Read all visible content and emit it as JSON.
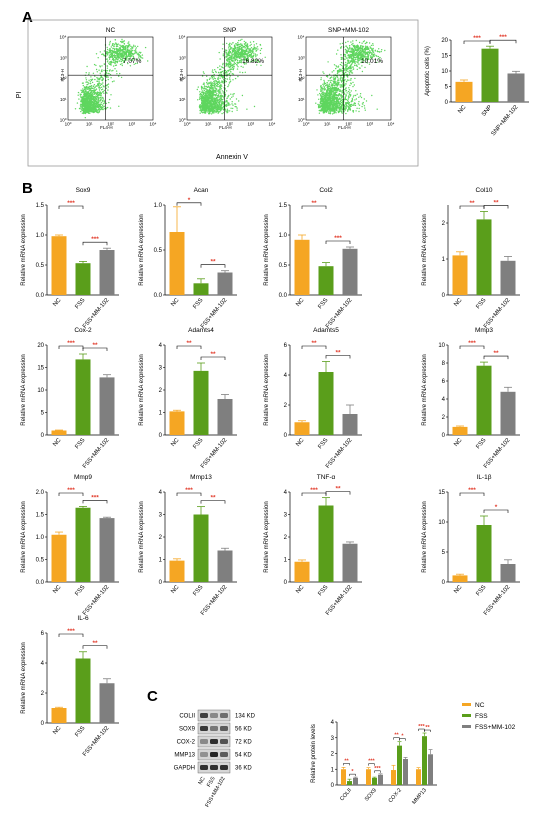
{
  "panel_labels": {
    "a": "A",
    "b": "B",
    "c": "C"
  },
  "colors": {
    "orange": "#F5A623",
    "green": "#5A9E1B",
    "gray": "#7F7F7F",
    "sig": "#E23A2A",
    "dots": "#5FD65F"
  },
  "flow": {
    "xlabel": "Annexin V",
    "ylabel": "PI",
    "quadrant_x_label": "FL4-H",
    "quadrant_y_label": "FL3-H",
    "x_ticks": [
      "10⁰",
      "10¹",
      "10²",
      "10³",
      "10⁴"
    ],
    "y_ticks": [
      "10⁰",
      "10¹",
      "10²",
      "10³",
      "10⁴"
    ],
    "plots": [
      {
        "title": "NC",
        "percent": "7.07%"
      },
      {
        "title": "SNP",
        "percent": "16.82%"
      },
      {
        "title": "SNP+MM-102",
        "percent": "10.01%"
      }
    ]
  },
  "western": {
    "bands": [
      {
        "name": "COLII",
        "size": "134 KD"
      },
      {
        "name": "SOX9",
        "size": "56 KD"
      },
      {
        "name": "COX-2",
        "size": "72 KD"
      },
      {
        "name": "MMP13",
        "size": "54 KD"
      },
      {
        "name": "GAPDH",
        "size": "36 KD"
      }
    ],
    "lanes": [
      "NC",
      "FSS",
      "FSS+MM-102"
    ]
  },
  "legend": [
    {
      "name": "NC",
      "color": "#F5A623"
    },
    {
      "name": "FSS",
      "color": "#5A9E1B"
    },
    {
      "name": "FSS+MM-102",
      "color": "#7F7F7F"
    }
  ],
  "chart_data": [
    {
      "id": "apoptosis",
      "type": "bar",
      "title": "",
      "ylabel": "Apoptotic cells (%)",
      "categories": [
        "NC",
        "SNP",
        "SNP+MM-102"
      ],
      "values": [
        6.5,
        17.2,
        9.2
      ],
      "errors": [
        0.6,
        0.8,
        0.7
      ],
      "ylim": [
        0,
        20
      ],
      "yticks": [
        "0",
        "5",
        "10",
        "15",
        "20"
      ],
      "sig": [
        {
          "from": 0,
          "to": 1,
          "label": "***"
        },
        {
          "from": 1,
          "to": 2,
          "label": "***"
        }
      ]
    },
    {
      "id": "sox9",
      "type": "bar",
      "title": "Sox9",
      "ylabel": "Relative mRNA expression",
      "categories": [
        "NC",
        "FSS",
        "FSS+MM-102"
      ],
      "values": [
        0.98,
        0.53,
        0.75
      ],
      "errors": [
        0.02,
        0.03,
        0.03
      ],
      "ylim": [
        0,
        1.5
      ],
      "yticks": [
        "0.0",
        "0.5",
        "1.0",
        "1.5"
      ],
      "sig": [
        {
          "from": 0,
          "to": 1,
          "label": "***"
        },
        {
          "from": 1,
          "to": 2,
          "label": "***"
        }
      ]
    },
    {
      "id": "acan",
      "type": "bar",
      "title": "Acan",
      "ylabel": "Relative mRNA expression",
      "categories": [
        "NC",
        "FSS",
        "FSS+MM-102"
      ],
      "values": [
        0.7,
        0.13,
        0.25
      ],
      "errors": [
        0.28,
        0.05,
        0.02
      ],
      "ylim": [
        0,
        1.0
      ],
      "yticks": [
        "0.0",
        "0.5",
        "1.0"
      ],
      "sig": [
        {
          "from": 0,
          "to": 1,
          "label": "*"
        },
        {
          "from": 1,
          "to": 2,
          "label": "**"
        }
      ]
    },
    {
      "id": "col2",
      "type": "bar",
      "title": "Col2",
      "ylabel": "Relative mRNA expression",
      "categories": [
        "NC",
        "FSS",
        "FSS+MM-102"
      ],
      "values": [
        0.92,
        0.48,
        0.77
      ],
      "errors": [
        0.08,
        0.06,
        0.03
      ],
      "ylim": [
        0,
        1.5
      ],
      "yticks": [
        "0.0",
        "0.5",
        "1.0",
        "1.5"
      ],
      "sig": [
        {
          "from": 0,
          "to": 1,
          "label": "**"
        },
        {
          "from": 1,
          "to": 2,
          "label": "***"
        }
      ]
    },
    {
      "id": "col10",
      "type": "bar",
      "title": "Col10",
      "ylabel": "Relative mRNA expression",
      "categories": [
        "NC",
        "FSS",
        "FSS+MM-102"
      ],
      "values": [
        1.1,
        2.1,
        0.95
      ],
      "errors": [
        0.1,
        0.22,
        0.12
      ],
      "ylim": [
        0,
        2.5
      ],
      "yticks": [
        "0",
        "1",
        "2"
      ],
      "sig": [
        {
          "from": 0,
          "to": 1,
          "label": "**"
        },
        {
          "from": 1,
          "to": 2,
          "label": "**"
        }
      ]
    },
    {
      "id": "cox2",
      "type": "bar",
      "title": "Cox-2",
      "ylabel": "Relative mRNA expression",
      "categories": [
        "NC",
        "FSS",
        "FSS+MM-102"
      ],
      "values": [
        1.0,
        16.8,
        12.8
      ],
      "errors": [
        0.1,
        1.2,
        0.6
      ],
      "ylim": [
        0,
        20
      ],
      "yticks": [
        "0",
        "5",
        "10",
        "15",
        "20"
      ],
      "sig": [
        {
          "from": 0,
          "to": 1,
          "label": "***"
        },
        {
          "from": 1,
          "to": 2,
          "label": "**"
        }
      ]
    },
    {
      "id": "adamts4",
      "type": "bar",
      "title": "Adamts4",
      "ylabel": "Relative mRNA expression",
      "categories": [
        "NC",
        "FSS",
        "FSS+MM-102"
      ],
      "values": [
        1.05,
        2.85,
        1.6
      ],
      "errors": [
        0.05,
        0.35,
        0.2
      ],
      "ylim": [
        0,
        4
      ],
      "yticks": [
        "0",
        "1",
        "2",
        "3",
        "4"
      ],
      "sig": [
        {
          "from": 0,
          "to": 1,
          "label": "**"
        },
        {
          "from": 1,
          "to": 2,
          "label": "**"
        }
      ]
    },
    {
      "id": "adamts5",
      "type": "bar",
      "title": "Adamts5",
      "ylabel": "Relative mRNA expression",
      "categories": [
        "NC",
        "FSS",
        "FSS+MM-102"
      ],
      "values": [
        0.85,
        4.2,
        1.4
      ],
      "errors": [
        0.1,
        0.7,
        0.6
      ],
      "ylim": [
        0,
        6
      ],
      "yticks": [
        "0",
        "2",
        "4",
        "6"
      ],
      "sig": [
        {
          "from": 0,
          "to": 1,
          "label": "**"
        },
        {
          "from": 1,
          "to": 2,
          "label": "**"
        }
      ]
    },
    {
      "id": "mmp3",
      "type": "bar",
      "title": "Mmp3",
      "ylabel": "Relative mRNA expression",
      "categories": [
        "NC",
        "FSS",
        "FSS+MM-102"
      ],
      "values": [
        0.9,
        7.7,
        4.8
      ],
      "errors": [
        0.1,
        0.4,
        0.5
      ],
      "ylim": [
        0,
        10
      ],
      "yticks": [
        "0",
        "2",
        "4",
        "6",
        "8",
        "10"
      ],
      "sig": [
        {
          "from": 0,
          "to": 1,
          "label": "***"
        },
        {
          "from": 1,
          "to": 2,
          "label": "**"
        }
      ]
    },
    {
      "id": "mmp9",
      "type": "bar",
      "title": "Mmp9",
      "ylabel": "Relative mRNA expression",
      "categories": [
        "NC",
        "FSS",
        "FSS+MM-102"
      ],
      "values": [
        1.05,
        1.65,
        1.42
      ],
      "errors": [
        0.06,
        0.03,
        0.02
      ],
      "ylim": [
        0,
        2.0
      ],
      "yticks": [
        "0.0",
        "0.5",
        "1.0",
        "1.5",
        "2.0"
      ],
      "sig": [
        {
          "from": 0,
          "to": 1,
          "label": "***"
        },
        {
          "from": 1,
          "to": 2,
          "label": "***"
        }
      ]
    },
    {
      "id": "mmp13",
      "type": "bar",
      "title": "Mmp13",
      "ylabel": "Relative mRNA expression",
      "categories": [
        "NC",
        "FSS",
        "FSS+MM-102"
      ],
      "values": [
        0.95,
        3.0,
        1.4
      ],
      "errors": [
        0.08,
        0.35,
        0.1
      ],
      "ylim": [
        0,
        4
      ],
      "yticks": [
        "0",
        "1",
        "2",
        "3",
        "4"
      ],
      "sig": [
        {
          "from": 0,
          "to": 1,
          "label": "***"
        },
        {
          "from": 1,
          "to": 2,
          "label": "**"
        }
      ]
    },
    {
      "id": "tnfa",
      "type": "bar",
      "title": "TNF-α",
      "ylabel": "Relative mRNA expression",
      "categories": [
        "NC",
        "FSS",
        "FSS+MM-102"
      ],
      "values": [
        0.9,
        3.4,
        1.7
      ],
      "errors": [
        0.08,
        0.35,
        0.08
      ],
      "ylim": [
        0,
        4
      ],
      "yticks": [
        "0",
        "1",
        "2",
        "3",
        "4"
      ],
      "sig": [
        {
          "from": 0,
          "to": 1,
          "label": "***"
        },
        {
          "from": 1,
          "to": 2,
          "label": "**"
        }
      ]
    },
    {
      "id": "il1b",
      "type": "bar",
      "title": "IL-1β",
      "ylabel": "Relative mRNA expression",
      "categories": [
        "NC",
        "FSS",
        "FSS+MM-102"
      ],
      "values": [
        1.1,
        9.5,
        3.0
      ],
      "errors": [
        0.2,
        1.5,
        0.7
      ],
      "ylim": [
        0,
        15
      ],
      "yticks": [
        "0",
        "5",
        "10",
        "15"
      ],
      "sig": [
        {
          "from": 0,
          "to": 1,
          "label": "***"
        },
        {
          "from": 1,
          "to": 2,
          "label": "*"
        }
      ]
    },
    {
      "id": "il6",
      "type": "bar",
      "title": "IL-6",
      "ylabel": "Relative mRNA expression",
      "categories": [
        "NC",
        "FSS",
        "FSS+MM-102"
      ],
      "values": [
        1.0,
        4.3,
        2.65
      ],
      "errors": [
        0.05,
        0.45,
        0.3
      ],
      "ylim": [
        0,
        6
      ],
      "yticks": [
        "0",
        "2",
        "4",
        "6"
      ],
      "sig": [
        {
          "from": 0,
          "to": 1,
          "label": "***"
        },
        {
          "from": 1,
          "to": 2,
          "label": "**"
        }
      ]
    },
    {
      "id": "protein",
      "type": "bar",
      "title": "",
      "ylabel": "Relative protein levels",
      "categories": [
        "COLII",
        "SOX9",
        "COX-2",
        "MMP13"
      ],
      "series": [
        {
          "name": "NC",
          "values": [
            1.0,
            1.0,
            0.95,
            1.0
          ]
        },
        {
          "name": "FSS",
          "values": [
            0.25,
            0.45,
            2.5,
            3.1
          ]
        },
        {
          "name": "FSS+MM-102",
          "values": [
            0.45,
            0.65,
            1.65,
            1.95
          ]
        }
      ],
      "errors": [
        [
          0.12,
          0.1,
          0.3,
          0.1
        ],
        [
          0.12,
          0.05,
          0.25,
          0.2
        ],
        [
          0.05,
          0.06,
          0.1,
          0.3
        ]
      ],
      "ylim": [
        0,
        4
      ],
      "yticks": [
        "0",
        "1",
        "2",
        "3",
        "4"
      ],
      "sig": [
        {
          "cat": 0,
          "from": 0,
          "to": 1,
          "label": "**"
        },
        {
          "cat": 0,
          "from": 1,
          "to": 2,
          "label": "*"
        },
        {
          "cat": 1,
          "from": 0,
          "to": 1,
          "label": "***"
        },
        {
          "cat": 1,
          "from": 1,
          "to": 2,
          "label": "***"
        },
        {
          "cat": 2,
          "from": 0,
          "to": 1,
          "label": "**"
        },
        {
          "cat": 2,
          "from": 1,
          "to": 2,
          "label": "*"
        },
        {
          "cat": 3,
          "from": 0,
          "to": 1,
          "label": "***"
        },
        {
          "cat": 3,
          "from": 1,
          "to": 2,
          "label": "**"
        }
      ]
    }
  ]
}
